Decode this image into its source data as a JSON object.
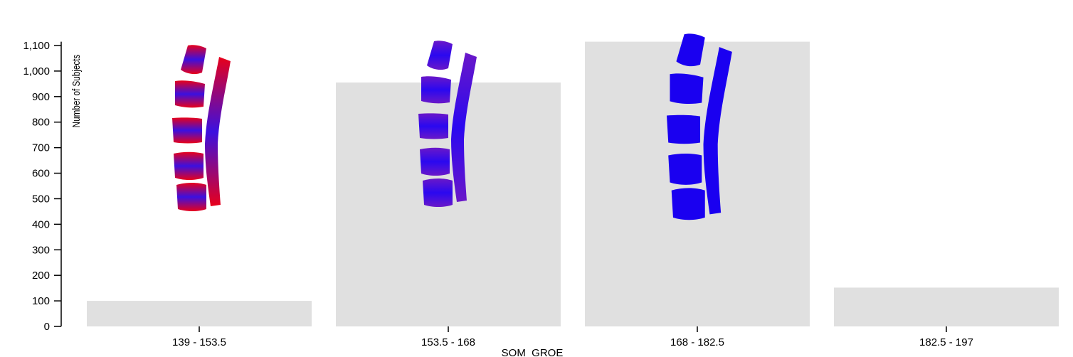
{
  "chart_data": {
    "type": "bar",
    "categories": [
      "139 - 153.5",
      "153.5 - 168",
      "168 - 182.5",
      "182.5 - 197"
    ],
    "values": [
      100,
      955,
      1115,
      152
    ],
    "ylabel": "Number of Subjects",
    "xlabel": "SOM_GROE",
    "yticks": [
      0,
      100,
      200,
      300,
      400,
      500,
      600,
      700,
      800,
      900,
      1000,
      1100
    ],
    "ytick_labels": [
      "0",
      "100",
      "200",
      "300",
      "400",
      "500",
      "600",
      "700",
      "800",
      "900",
      "1,000",
      "1,100"
    ],
    "ylim": [
      0,
      1115
    ],
    "grid": false,
    "bar_color": "#e0e0e0",
    "glyphs": {
      "kind": "spine-icon",
      "colors": [
        "#e8001a",
        "#6a18c8",
        "#1a00f0"
      ]
    }
  }
}
